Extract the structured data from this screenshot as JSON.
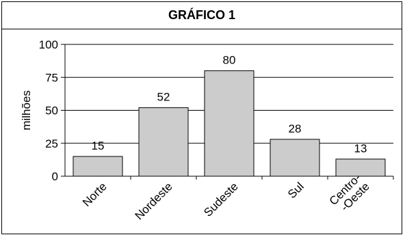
{
  "chart_data": {
    "type": "bar",
    "title": "GRÁFICO 1",
    "ylabel": "milhões",
    "xlabel": "",
    "categories": [
      "Norte",
      "Nordeste",
      "Sudeste",
      "Sul",
      "Centro-\n-Oeste"
    ],
    "values": [
      15,
      52,
      80,
      28,
      13
    ],
    "ylim": [
      0,
      100
    ],
    "yticks": [
      0,
      25,
      50,
      75,
      100
    ],
    "grid": true,
    "bar_color": "#cccccc",
    "legend": "none"
  }
}
